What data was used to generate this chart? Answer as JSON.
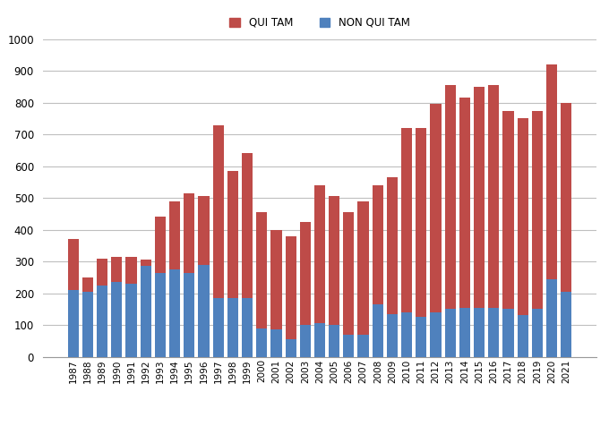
{
  "years": [
    1987,
    1988,
    1989,
    1990,
    1991,
    1992,
    1993,
    1994,
    1995,
    1996,
    1997,
    1998,
    1999,
    2000,
    2001,
    2002,
    2003,
    2004,
    2005,
    2006,
    2007,
    2008,
    2009,
    2010,
    2011,
    2012,
    2013,
    2014,
    2015,
    2016,
    2017,
    2018,
    2019,
    2020,
    2021
  ],
  "qui_tam": [
    160,
    45,
    85,
    80,
    85,
    20,
    175,
    215,
    250,
    215,
    545,
    400,
    455,
    365,
    315,
    325,
    325,
    435,
    405,
    385,
    420,
    375,
    430,
    580,
    595,
    655,
    705,
    660,
    695,
    700,
    625,
    620,
    625,
    675,
    595
  ],
  "non_qui_tam": [
    210,
    205,
    225,
    235,
    230,
    285,
    265,
    275,
    265,
    290,
    185,
    185,
    185,
    90,
    85,
    55,
    100,
    105,
    100,
    70,
    70,
    165,
    135,
    140,
    125,
    140,
    150,
    155,
    155,
    155,
    150,
    130,
    150,
    245,
    205
  ],
  "qui_tam_color": "#be4b48",
  "non_qui_tam_color": "#4f81bd",
  "legend_label_1": "QUI TAM",
  "legend_label_2": "NON QUI TAM",
  "ylim": [
    0,
    1000
  ],
  "yticks": [
    0,
    100,
    200,
    300,
    400,
    500,
    600,
    700,
    800,
    900,
    1000
  ],
  "background_color": "#ffffff",
  "grid_color": "#bfbfbf"
}
